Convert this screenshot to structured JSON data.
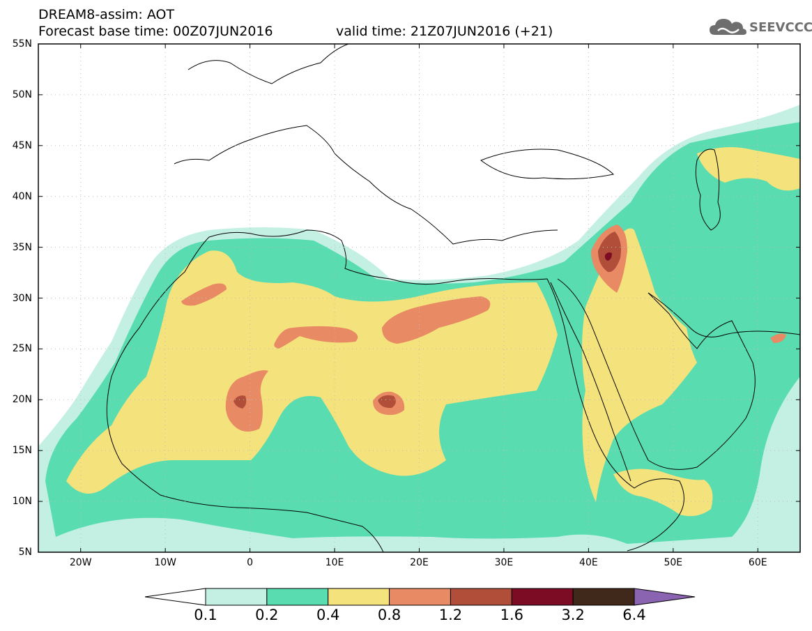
{
  "header": {
    "title": "DREAM8-assim: AOT",
    "base_time": "Forecast base time: 00Z07JUN2016",
    "valid_time": "valid time: 21Z07JUN2016 (+21)",
    "logo_text": "SEEVCCC"
  },
  "map": {
    "lon_range": [
      -25,
      65
    ],
    "lat_range": [
      5,
      55
    ],
    "lat_ticks": [
      "5N",
      "10N",
      "15N",
      "20N",
      "25N",
      "30N",
      "35N",
      "40N",
      "45N",
      "50N",
      "55N"
    ],
    "lon_ticks": [
      "20W",
      "10W",
      "0",
      "10E",
      "20E",
      "30E",
      "40E",
      "50E",
      "60E"
    ],
    "grid": "dotted"
  },
  "colorbar": {
    "labels": [
      "0.1",
      "0.2",
      "0.4",
      "0.8",
      "1.2",
      "1.6",
      "3.2",
      "6.4"
    ],
    "colors": [
      "#ffffff",
      "#c4f0e4",
      "#58dcb0",
      "#f4e27c",
      "#e88a64",
      "#b04e3a",
      "#7c0c24",
      "#40281a",
      "#8a64b0"
    ]
  }
}
